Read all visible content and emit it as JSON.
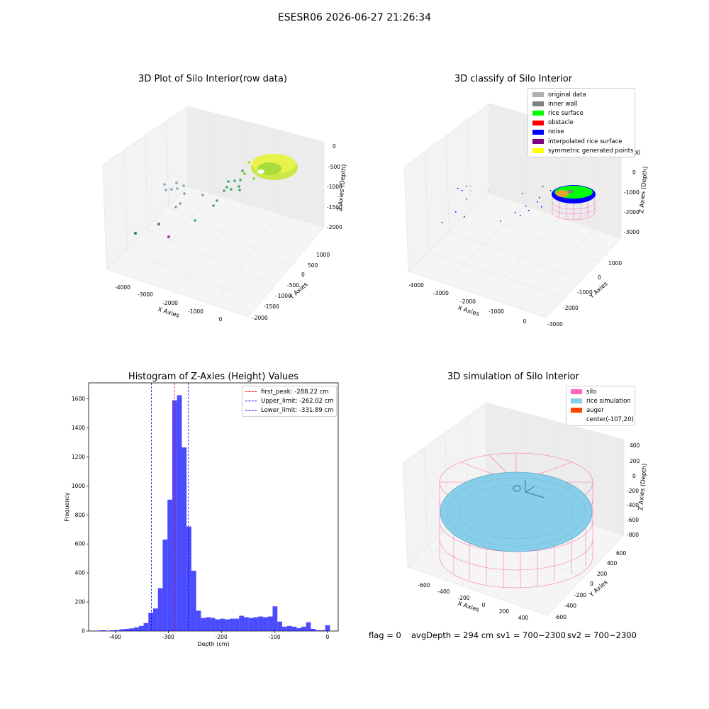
{
  "suptitle": "ESESR06 2026-06-27 21:26:34",
  "panels": {
    "raw": {
      "title": "3D Plot of Silo Interior(row data)",
      "xlabel": "X Axies",
      "ylabel": "Y Axies",
      "zlabel": "Z Axies (Depth)",
      "xticks": [
        "-4000",
        "-3000",
        "-2000",
        "-1000",
        "0"
      ],
      "yticks": [
        "1000",
        "500",
        "0",
        "-500",
        "-1000",
        "-1500",
        "-2000"
      ],
      "zticks": [
        "0",
        "-500",
        "-1000",
        "-1500",
        "-2000"
      ]
    },
    "classify": {
      "title": "3D classify of Silo Interior",
      "xlabel": "X Axies",
      "ylabel": "Y Axies",
      "zlabel": "Z Axies (Depth)",
      "xticks": [
        "-4000",
        "-3000",
        "-2000",
        "-1000",
        "0"
      ],
      "yticks": [
        "1000",
        "0",
        "-1000",
        "-2000",
        "-3000"
      ],
      "zticks": [
        "1000",
        "0",
        "-1000",
        "-2000",
        "-3000"
      ],
      "legend": [
        {
          "label": "original data",
          "color": "#b0b0b0"
        },
        {
          "label": "inner wall",
          "color": "#808080"
        },
        {
          "label": "rice surface",
          "color": "#00ff00"
        },
        {
          "label": "obstacle",
          "color": "#ff0000"
        },
        {
          "label": "noise",
          "color": "#0000ff"
        },
        {
          "label": "interpolated rice surface",
          "color": "#800080"
        },
        {
          "label": "symmetric generated points",
          "color": "#ffff00"
        }
      ]
    },
    "simulation": {
      "title": "3D simulation of Silo Interior",
      "xlabel": "X Axies",
      "ylabel": "Y Axies",
      "zlabel": "Z Axies (Depth)",
      "xticks": [
        "-600",
        "-400",
        "-200",
        "0",
        "200",
        "400"
      ],
      "yticks": [
        "600",
        "400",
        "200",
        "0",
        "-200",
        "-400",
        "-600"
      ],
      "zticks": [
        "400",
        "200",
        "0",
        "-200",
        "-400",
        "-600",
        "-800"
      ],
      "legend": [
        {
          "label": "silo",
          "color": "#ff69b4"
        },
        {
          "label": "rice simulation",
          "color": "#87ceeb"
        },
        {
          "label": "auger",
          "color": "#ff4500"
        },
        {
          "label": "center(-107,20)",
          "color": ""
        }
      ]
    }
  },
  "status": {
    "flag": "flag = 0",
    "avg": "avgDepth = 294 cm",
    "sv1": "sv1 = 700~2300",
    "sv2": "sv2 = 700~2300"
  },
  "chart_data": [
    {
      "type": "bar",
      "title": "Histogram of Z-Axies (Height) Values",
      "xlabel": "Depth (cm)",
      "ylabel": "Frequency",
      "xlim": [
        -450,
        20
      ],
      "ylim": [
        0,
        1710
      ],
      "xticks": [
        -400,
        -300,
        -200,
        -100,
        0
      ],
      "yticks": [
        0,
        200,
        400,
        600,
        800,
        1000,
        1200,
        1400,
        1600
      ],
      "bins": {
        "x": [
          -432,
          -423,
          -414,
          -405,
          -396,
          -387,
          -378,
          -369,
          -360,
          -351,
          -342,
          -333,
          -324,
          -315,
          -306,
          -297,
          -288,
          -279,
          -270,
          -261,
          -252,
          -243,
          -234,
          -225,
          -216,
          -207,
          -198,
          -189,
          -180,
          -171,
          -162,
          -153,
          -144,
          -135,
          -126,
          -117,
          -108,
          -99,
          -90,
          -81,
          -72,
          -63,
          -54,
          -45,
          -36,
          -27,
          -18,
          -9,
          0
        ],
        "values": [
          3,
          5,
          2,
          5,
          6,
          12,
          15,
          18,
          25,
          35,
          55,
          125,
          155,
          295,
          630,
          905,
          1590,
          1625,
          1265,
          720,
          415,
          140,
          90,
          95,
          90,
          80,
          85,
          80,
          85,
          85,
          105,
          95,
          90,
          95,
          100,
          95,
          100,
          170,
          65,
          30,
          35,
          30,
          20,
          30,
          60,
          15,
          5,
          5,
          40
        ],
        "width": 9,
        "color": "#0000ff"
      },
      "vlines": [
        {
          "name": "first_peak: -288.22 cm",
          "x": -288.22,
          "color": "#ff0000"
        },
        {
          "name": "Upper_limit: -262.02 cm",
          "x": -262.02,
          "color": "#0000ff"
        },
        {
          "name": "Lower_limit: -331.89 cm",
          "x": -331.89,
          "color": "#0000ff"
        }
      ],
      "legend": "top-right",
      "grid": false
    }
  ]
}
